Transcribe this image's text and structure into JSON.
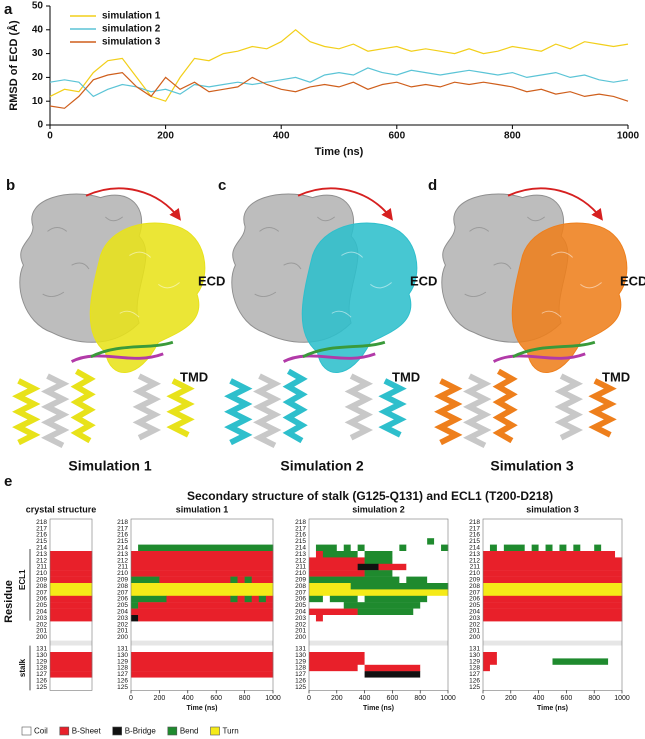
{
  "panel_a": {
    "label": "a"
  },
  "chart_data": [
    {
      "type": "line",
      "xlabel": "Time (ns)",
      "ylabel": "RMSD of ECD (Å)",
      "x": [
        0,
        25,
        50,
        75,
        100,
        125,
        150,
        175,
        200,
        225,
        250,
        275,
        300,
        325,
        350,
        375,
        400,
        425,
        450,
        475,
        500,
        525,
        550,
        575,
        600,
        625,
        650,
        675,
        700,
        725,
        750,
        775,
        800,
        825,
        850,
        875,
        900,
        925,
        950,
        975,
        1000
      ],
      "series": [
        {
          "name": "simulation 1",
          "color": "#f2cf1a",
          "values": [
            12,
            15,
            14,
            22,
            27,
            28,
            20,
            12,
            10,
            20,
            28,
            27,
            30,
            31,
            33,
            32,
            35,
            40,
            35,
            33,
            32,
            34,
            31,
            32,
            33,
            31,
            32,
            31,
            30,
            32,
            30,
            31,
            33,
            32,
            31,
            34,
            32,
            35,
            34,
            33,
            34
          ]
        },
        {
          "name": "simulation 2",
          "color": "#5bc4d6",
          "values": [
            18,
            19,
            18,
            12,
            15,
            17,
            16,
            14,
            15,
            13,
            17,
            16,
            17,
            18,
            17,
            18,
            19,
            20,
            18,
            21,
            22,
            21,
            24,
            22,
            21,
            23,
            22,
            21,
            22,
            23,
            22,
            21,
            22,
            20,
            21,
            22,
            20,
            21,
            19,
            18,
            19
          ]
        },
        {
          "name": "simulation 3",
          "color": "#cf5f1c",
          "values": [
            8,
            7,
            12,
            19,
            21,
            22,
            16,
            12,
            20,
            15,
            18,
            14,
            15,
            16,
            20,
            17,
            15,
            14,
            16,
            17,
            16,
            18,
            15,
            17,
            18,
            16,
            17,
            16,
            18,
            17,
            18,
            17,
            16,
            14,
            15,
            13,
            14,
            12,
            13,
            12,
            10
          ]
        }
      ],
      "xlim": [
        0,
        1000
      ],
      "xticks": [
        0,
        200,
        400,
        600,
        800,
        1000
      ],
      "ylim": [
        0,
        50
      ],
      "yticks": [
        0,
        10,
        20,
        30,
        40,
        50
      ],
      "legend": "upper left"
    },
    {
      "type": "heatmap",
      "title": "crystal structure",
      "rows": [
        {
          "residue": 218,
          "states": "0"
        },
        {
          "residue": 217,
          "states": "0"
        },
        {
          "residue": 216,
          "states": "0"
        },
        {
          "residue": 215,
          "states": "0"
        },
        {
          "residue": 214,
          "states": "0"
        },
        {
          "residue": 213,
          "states": "1"
        },
        {
          "residue": 212,
          "states": "1"
        },
        {
          "residue": 211,
          "states": "1"
        },
        {
          "residue": 210,
          "states": "1"
        },
        {
          "residue": 209,
          "states": "1"
        },
        {
          "residue": 208,
          "states": "4"
        },
        {
          "residue": 207,
          "states": "4"
        },
        {
          "residue": 206,
          "states": "1"
        },
        {
          "residue": 205,
          "states": "1"
        },
        {
          "residue": 204,
          "states": "1"
        },
        {
          "residue": 203,
          "states": "1"
        },
        {
          "residue": 202,
          "states": "0"
        },
        {
          "residue": 201,
          "states": "0"
        },
        {
          "residue": 200,
          "states": "0"
        },
        {
          "residue": 131,
          "states": "0"
        },
        {
          "residue": 130,
          "states": "1"
        },
        {
          "residue": 129,
          "states": "1"
        },
        {
          "residue": 128,
          "states": "1"
        },
        {
          "residue": 127,
          "states": "1"
        },
        {
          "residue": 126,
          "states": "0"
        },
        {
          "residue": 125,
          "states": "0"
        }
      ]
    },
    {
      "type": "heatmap",
      "title": "simulation 1",
      "xlabel": "Time (ns)",
      "xlim": [
        0,
        1000
      ],
      "xticks": [
        0,
        200,
        400,
        600,
        800,
        1000
      ],
      "rows": [
        {
          "residue": 218,
          "states": "00000000000000000000"
        },
        {
          "residue": 217,
          "states": "00000000000000000000"
        },
        {
          "residue": 216,
          "states": "00000000000000000000"
        },
        {
          "residue": 215,
          "states": "00000000000000000000"
        },
        {
          "residue": 214,
          "states": "03333333333333333333"
        },
        {
          "residue": 213,
          "states": "11111111111111111111"
        },
        {
          "residue": 212,
          "states": "11111111111111111111"
        },
        {
          "residue": 211,
          "states": "11111111111111111111"
        },
        {
          "residue": 210,
          "states": "11111111111111111111"
        },
        {
          "residue": 209,
          "states": "33331111111111313111"
        },
        {
          "residue": 208,
          "states": "44444444444444444444"
        },
        {
          "residue": 207,
          "states": "44444444444444444444"
        },
        {
          "residue": 206,
          "states": "33333111111111313131"
        },
        {
          "residue": 205,
          "states": "31111111111111111111"
        },
        {
          "residue": 204,
          "states": "11111111111111111111"
        },
        {
          "residue": 203,
          "states": "21111111111111111111"
        },
        {
          "residue": 202,
          "states": "00000000000000000000"
        },
        {
          "residue": 201,
          "states": "00000000000000000000"
        },
        {
          "residue": 200,
          "states": "00000000000000000000"
        },
        {
          "residue": 131,
          "states": "00000000000000000000"
        },
        {
          "residue": 130,
          "states": "11111111111111111111"
        },
        {
          "residue": 129,
          "states": "11111111111111111111"
        },
        {
          "residue": 128,
          "states": "11111111111111111111"
        },
        {
          "residue": 127,
          "states": "11111111111111111111"
        },
        {
          "residue": 126,
          "states": "00000000000000000000"
        },
        {
          "residue": 125,
          "states": "00000000000000000000"
        }
      ]
    },
    {
      "type": "heatmap",
      "title": "simulation 2",
      "xlabel": "Time (ns)",
      "xlim": [
        0,
        1000
      ],
      "xticks": [
        0,
        200,
        400,
        600,
        800,
        1000
      ],
      "rows": [
        {
          "residue": 218,
          "states": "00000000000000000000"
        },
        {
          "residue": 217,
          "states": "00000000000000000000"
        },
        {
          "residue": 216,
          "states": "00000000000000000000"
        },
        {
          "residue": 215,
          "states": "00000000000000000300"
        },
        {
          "residue": 214,
          "states": "03330303000003000003"
        },
        {
          "residue": 213,
          "states": "01333330333300000000"
        },
        {
          "residue": 212,
          "states": "11111111333300000000"
        },
        {
          "residue": 211,
          "states": "11111112221111000000"
        },
        {
          "residue": 210,
          "states": "11111111333300000000"
        },
        {
          "residue": 209,
          "states": "33333333333330333000"
        },
        {
          "residue": 208,
          "states": "44444433333333333333"
        },
        {
          "residue": 207,
          "states": "44444444444444444444"
        },
        {
          "residue": 206,
          "states": "33033330333333333000"
        },
        {
          "residue": 205,
          "states": "00000333333333330000"
        },
        {
          "residue": 204,
          "states": "11111113333333300000"
        },
        {
          "residue": 203,
          "states": "01000000000000000000"
        },
        {
          "residue": 202,
          "states": "00000000000000000000"
        },
        {
          "residue": 201,
          "states": "00000000000000000000"
        },
        {
          "residue": 200,
          "states": "00000000000000000000"
        },
        {
          "residue": 131,
          "states": "00000000000000000000"
        },
        {
          "residue": 130,
          "states": "11111111000000000000"
        },
        {
          "residue": 129,
          "states": "11111111000000000000"
        },
        {
          "residue": 128,
          "states": "11111110111111110000"
        },
        {
          "residue": 127,
          "states": "00000000222222220000"
        },
        {
          "residue": 126,
          "states": "00000000000000000000"
        },
        {
          "residue": 125,
          "states": "00000000000000000000"
        }
      ]
    },
    {
      "type": "heatmap",
      "title": "simulation 3",
      "xlabel": "Time (ns)",
      "xlim": [
        0,
        1000
      ],
      "xticks": [
        0,
        200,
        400,
        600,
        800,
        1000
      ],
      "rows": [
        {
          "residue": 218,
          "states": "00000000000000000000"
        },
        {
          "residue": 217,
          "states": "00000000000000000000"
        },
        {
          "residue": 216,
          "states": "00000000000000000000"
        },
        {
          "residue": 215,
          "states": "00000000000000000000"
        },
        {
          "residue": 214,
          "states": "03033303030303003000"
        },
        {
          "residue": 213,
          "states": "11111111111111111110"
        },
        {
          "residue": 212,
          "states": "11111111111111111111"
        },
        {
          "residue": 211,
          "states": "11111111111111111111"
        },
        {
          "residue": 210,
          "states": "11111111111111111111"
        },
        {
          "residue": 209,
          "states": "11111111111111111111"
        },
        {
          "residue": 208,
          "states": "44444444444444444444"
        },
        {
          "residue": 207,
          "states": "44444444444444444444"
        },
        {
          "residue": 206,
          "states": "11111111111111111111"
        },
        {
          "residue": 205,
          "states": "11111111111111111111"
        },
        {
          "residue": 204,
          "states": "11111111111111111111"
        },
        {
          "residue": 203,
          "states": "11111111111111111111"
        },
        {
          "residue": 202,
          "states": "00000000000000000000"
        },
        {
          "residue": 201,
          "states": "00000000000000000000"
        },
        {
          "residue": 200,
          "states": "00000000000000000000"
        },
        {
          "residue": 131,
          "states": "00000000000000000000"
        },
        {
          "residue": 130,
          "states": "11000000000000000000"
        },
        {
          "residue": 129,
          "states": "11000000003333333300"
        },
        {
          "residue": 128,
          "states": "10000000000000000000"
        },
        {
          "residue": 127,
          "states": "00000000000000000000"
        },
        {
          "residue": 126,
          "states": "00000000000000000000"
        },
        {
          "residue": 125,
          "states": "00000000000000000000"
        }
      ]
    }
  ],
  "structures": [
    {
      "label": "b",
      "ecd": "ECD",
      "tmd": "TMD",
      "caption": "Simulation 1"
    },
    {
      "label": "c",
      "ecd": "ECD",
      "tmd": "TMD",
      "caption": "Simulation 2"
    },
    {
      "label": "d",
      "ecd": "ECD",
      "tmd": "TMD",
      "caption": "Simulation 3"
    }
  ],
  "panel_e": {
    "label": "e",
    "title": "Secondary structure of stalk (G125-Q131) and ECL1 (T200-D218)",
    "y_label": "Residue",
    "groups": [
      "ECL1",
      "stalk"
    ],
    "legend": [
      {
        "name": "Coil",
        "color": "#ffffff"
      },
      {
        "name": "B-Sheet",
        "color": "#e8202a"
      },
      {
        "name": "B-Bridge",
        "color": "#111111"
      },
      {
        "name": "Bend",
        "color": "#1f8a2e"
      },
      {
        "name": "Turn",
        "color": "#f5ea18"
      }
    ]
  }
}
